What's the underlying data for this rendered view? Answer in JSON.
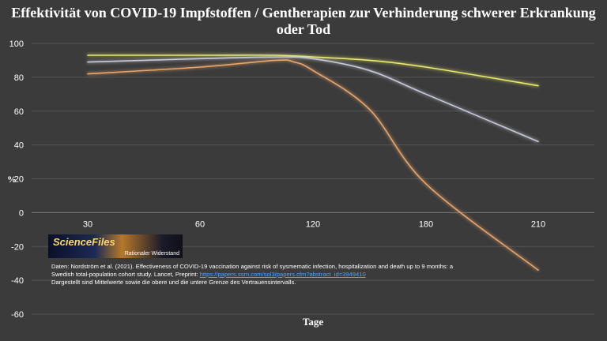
{
  "chart_data": {
    "type": "line",
    "title": "Effektivität von COVID-19 Impfstoffen / Gentherapien zur Verhinderung schwerer Erkrankung oder Tod",
    "xlabel": "Tage",
    "ylabel": "%",
    "x_ticks": [
      30,
      60,
      120,
      180,
      210
    ],
    "y_ticks": [
      100,
      80,
      60,
      40,
      20,
      0,
      -20,
      -40,
      -60
    ],
    "ylim": [
      -60,
      100
    ],
    "grid": true,
    "series": [
      {
        "color": "#e8e86a",
        "x": [
          30,
          60,
          100,
          120,
          150,
          180,
          210
        ],
        "y": [
          93,
          93,
          93,
          92,
          90,
          86,
          75
        ]
      },
      {
        "color": "#c7c9d9",
        "x": [
          30,
          60,
          100,
          120,
          150,
          180,
          210
        ],
        "y": [
          89,
          91,
          92,
          91,
          84,
          70,
          42
        ]
      },
      {
        "color": "#e9a56b",
        "x": [
          30,
          60,
          100,
          110,
          120,
          150,
          180,
          210
        ],
        "y": [
          82,
          86,
          90,
          89,
          84,
          61,
          17,
          -34
        ]
      }
    ]
  },
  "logo": {
    "name": "ScienceFiles",
    "subtitle": "Rationaler Widerstand"
  },
  "source": {
    "line1": "Daten: Nordström et al. (2021). Effectiveness of COVID-19 vaccination against risk of sysmematic infection, hospitalization and death up to 9 months: a",
    "line2_text": "Swedish total-population cohort study. Lancet, Preprint: ",
    "line2_link": "https://papers.ssrn.com/sol3/papers.cfm?abstract_id=3949410",
    "line3": "Dargestellt sind Mittelwerte sowie die obere und die untere Grenze des Vertrauensintervalls."
  }
}
